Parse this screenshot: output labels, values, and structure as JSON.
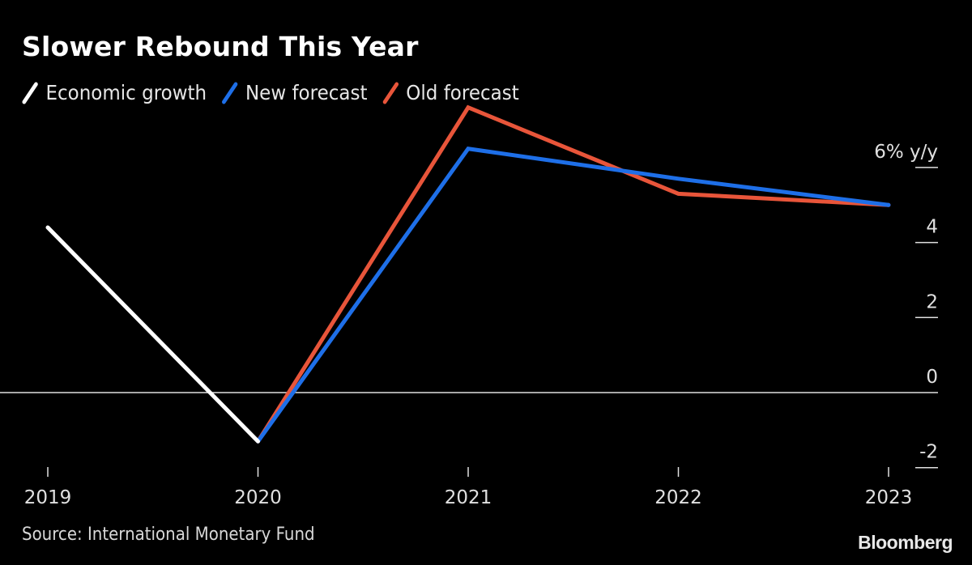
{
  "chart_data": {
    "type": "line",
    "title": "Slower Rebound This Year",
    "xlabel": "",
    "ylabel": "% y/y",
    "categories": [
      "2019",
      "2020",
      "2021",
      "2022",
      "2023"
    ],
    "ylim": [
      -2,
      6
    ],
    "yticks": [
      {
        "value": 6,
        "label": "6% y/y"
      },
      {
        "value": 4,
        "label": "4"
      },
      {
        "value": 2,
        "label": "2"
      },
      {
        "value": 0,
        "label": "0"
      },
      {
        "value": -2,
        "label": "-2"
      }
    ],
    "grid": false,
    "legend_position": "top-left",
    "series": [
      {
        "name": "Economic growth",
        "color": "#ffffff",
        "values": [
          4.4,
          -1.3,
          null,
          null,
          null
        ]
      },
      {
        "name": "New forecast",
        "color": "#1e6fe8",
        "values": [
          null,
          -1.3,
          6.5,
          5.7,
          5.0
        ]
      },
      {
        "name": "Old forecast",
        "color": "#e8553a",
        "values": [
          null,
          -1.3,
          7.6,
          5.3,
          5.0
        ]
      }
    ],
    "source": "Source: International Monetary Fund",
    "brand": "Bloomberg"
  }
}
